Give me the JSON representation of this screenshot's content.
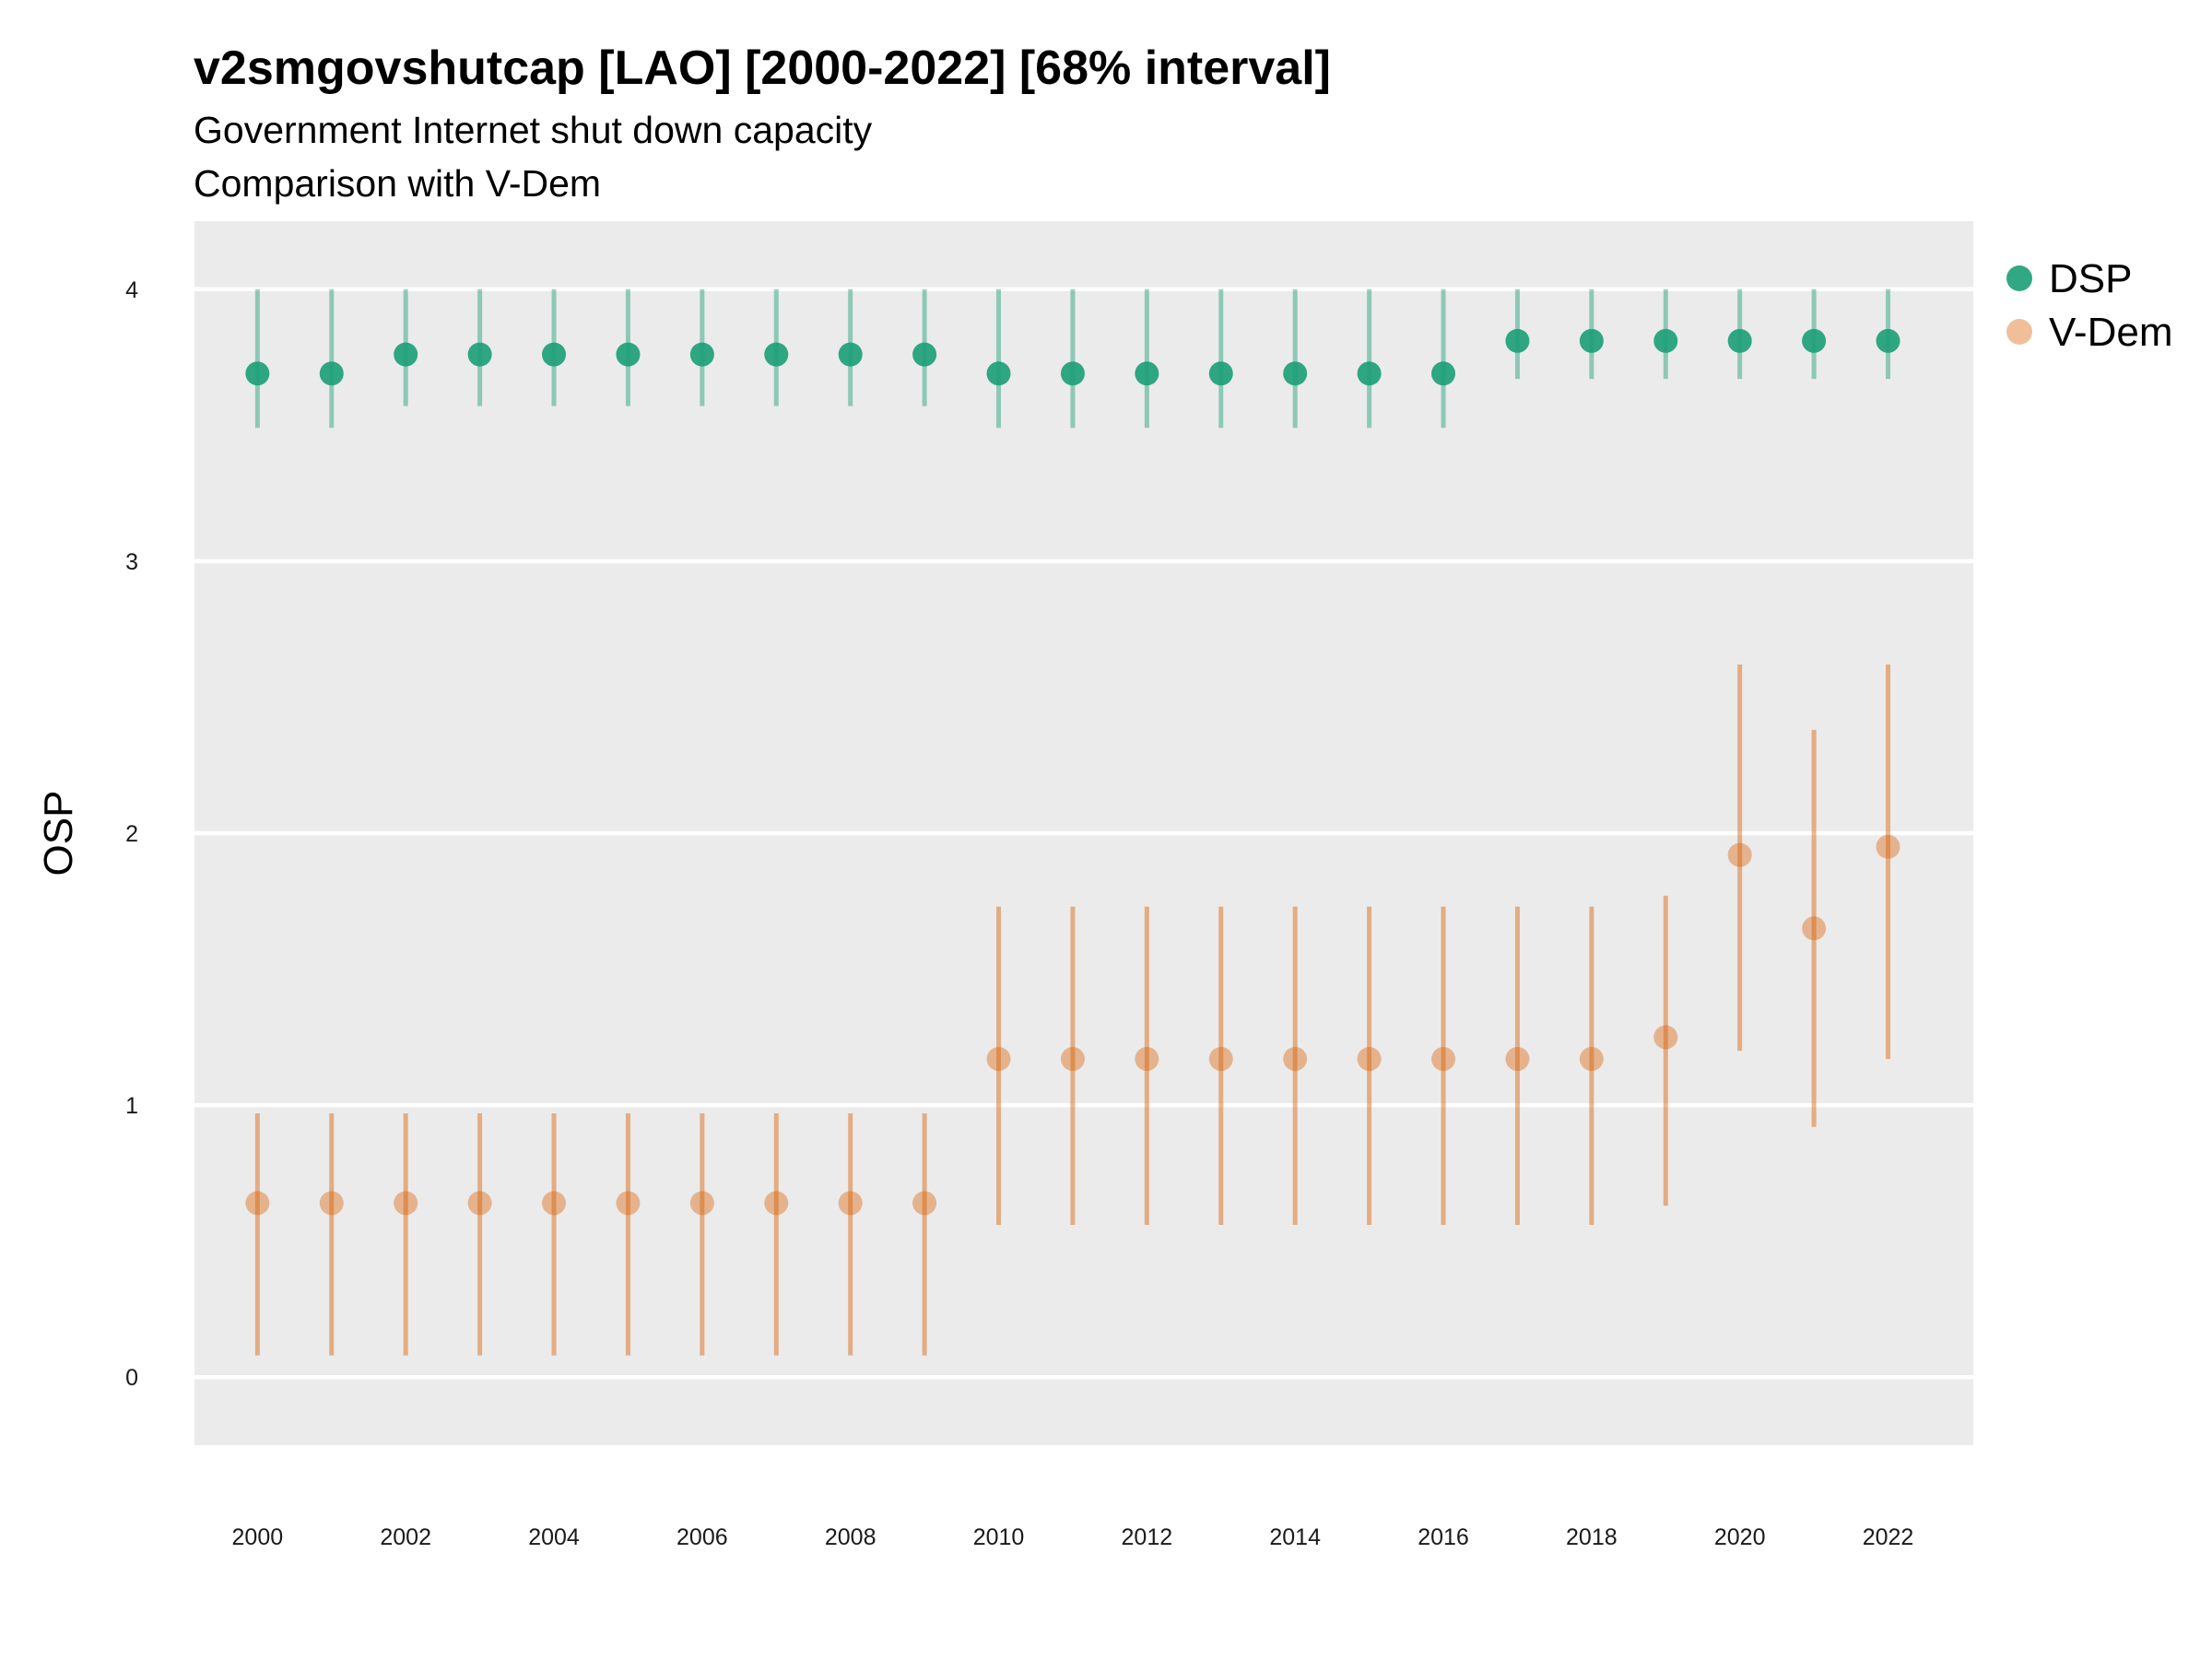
{
  "chart_data": {
    "type": "scatter",
    "title": "v2smgovshutcap [LAO] [2000-2022] [68% interval]",
    "subtitle_lines": [
      "Government Internet shut down capacity",
      "Comparison with V-Dem"
    ],
    "xlabel": "",
    "ylabel": "OSP",
    "x": [
      2000,
      2001,
      2002,
      2003,
      2004,
      2005,
      2006,
      2007,
      2008,
      2009,
      2010,
      2011,
      2012,
      2013,
      2014,
      2015,
      2016,
      2017,
      2018,
      2019,
      2020,
      2021,
      2022
    ],
    "x_ticks": [
      "2000",
      "2002",
      "2004",
      "2006",
      "2008",
      "2010",
      "2012",
      "2014",
      "2016",
      "2018",
      "2020",
      "2022"
    ],
    "y_ticks": [
      "0",
      "1",
      "2",
      "3",
      "4"
    ],
    "xlim": [
      1999.15,
      2023.15
    ],
    "ylim": [
      -0.25,
      4.25
    ],
    "grid": true,
    "legend_position": "right",
    "series": [
      {
        "name": "DSP",
        "color": "#1b9e77",
        "values": [
          3.69,
          3.69,
          3.76,
          3.76,
          3.76,
          3.76,
          3.76,
          3.76,
          3.76,
          3.76,
          3.69,
          3.69,
          3.69,
          3.69,
          3.69,
          3.69,
          3.69,
          3.81,
          3.81,
          3.81,
          3.81,
          3.81,
          3.81
        ],
        "lower": [
          3.49,
          3.49,
          3.57,
          3.57,
          3.57,
          3.57,
          3.57,
          3.57,
          3.57,
          3.57,
          3.49,
          3.49,
          3.49,
          3.49,
          3.49,
          3.49,
          3.49,
          3.67,
          3.67,
          3.67,
          3.67,
          3.67,
          3.67
        ],
        "upper": [
          4.0,
          4.0,
          4.0,
          4.0,
          4.0,
          4.0,
          4.0,
          4.0,
          4.0,
          4.0,
          4.0,
          4.0,
          4.0,
          4.0,
          4.0,
          4.0,
          4.0,
          4.0,
          4.0,
          4.0,
          4.0,
          4.0,
          4.0
        ]
      },
      {
        "name": "V-Dem",
        "color": "#d95f02",
        "values": [
          0.64,
          0.64,
          0.64,
          0.64,
          0.64,
          0.64,
          0.64,
          0.64,
          0.64,
          0.64,
          1.17,
          1.17,
          1.17,
          1.17,
          1.17,
          1.17,
          1.17,
          1.17,
          1.17,
          1.25,
          1.92,
          1.65,
          1.95
        ],
        "lower": [
          0.08,
          0.08,
          0.08,
          0.08,
          0.08,
          0.08,
          0.08,
          0.08,
          0.08,
          0.08,
          0.56,
          0.56,
          0.56,
          0.56,
          0.56,
          0.56,
          0.56,
          0.56,
          0.56,
          0.63,
          1.2,
          0.92,
          1.17
        ],
        "upper": [
          0.97,
          0.97,
          0.97,
          0.97,
          0.97,
          0.97,
          0.97,
          0.97,
          0.97,
          0.97,
          1.73,
          1.73,
          1.73,
          1.73,
          1.73,
          1.73,
          1.73,
          1.73,
          1.73,
          1.77,
          2.62,
          2.38,
          2.62
        ]
      }
    ]
  }
}
